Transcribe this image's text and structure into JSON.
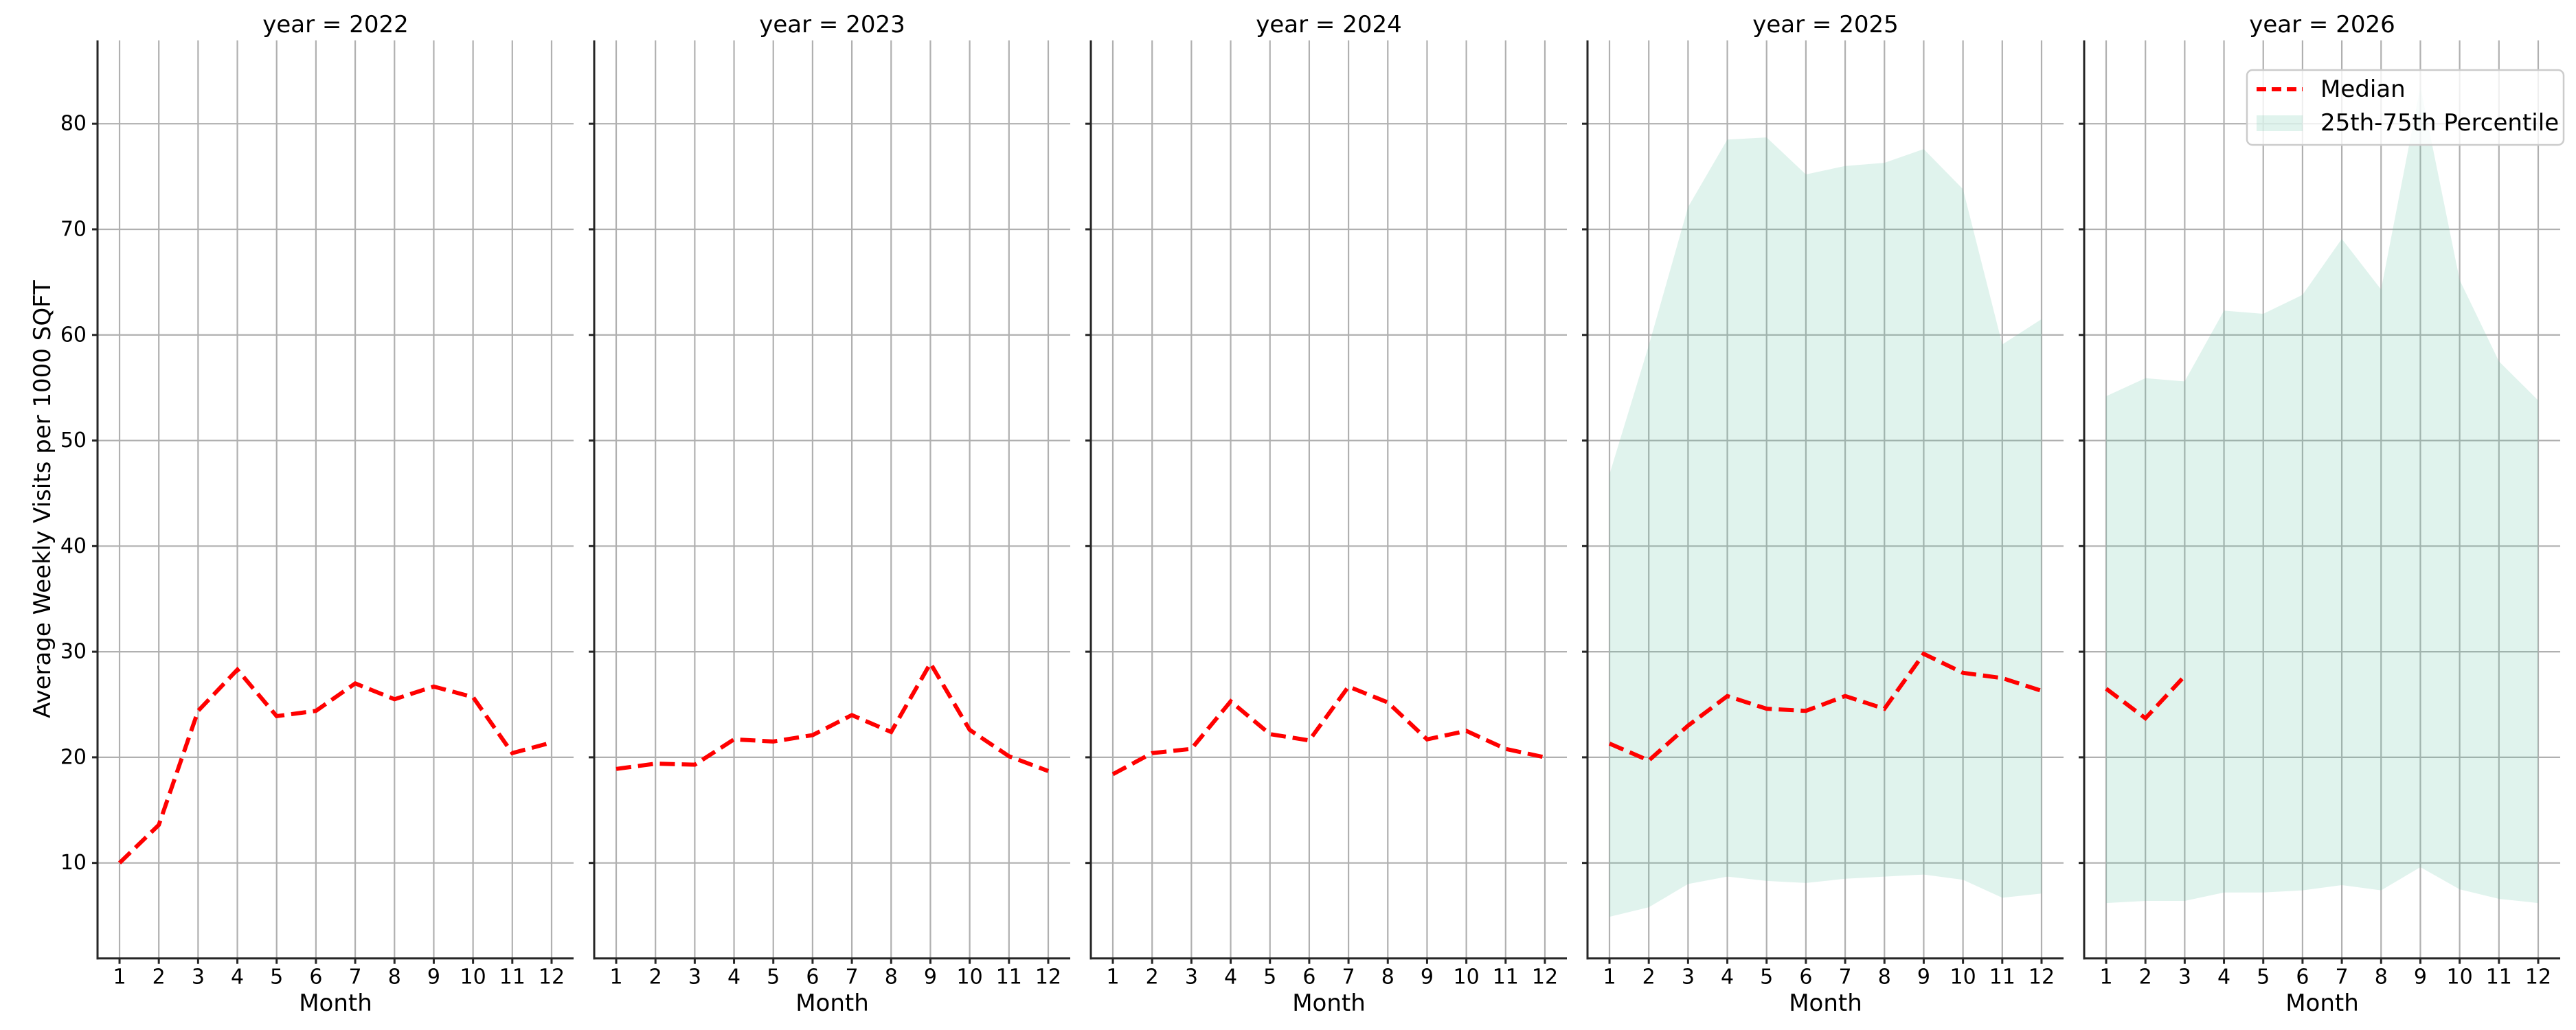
{
  "chart_data": {
    "type": "line",
    "layout": "faceted small multiples (1 row x 5 columns), shared y-axis",
    "facet_variable": "year",
    "xlabel": "Month",
    "ylabel": "Average Weekly Visits per 1000 SQFT",
    "x_ticks": [
      1,
      2,
      3,
      4,
      5,
      6,
      7,
      8,
      9,
      10,
      11,
      12
    ],
    "y_ticks": [
      10,
      20,
      30,
      40,
      50,
      60,
      70,
      80
    ],
    "xlim": [
      0.44,
      12.56
    ],
    "ylim": [
      0.96,
      87.9
    ],
    "grid": true,
    "legend": {
      "position": "upper right of last panel",
      "entries": [
        {
          "label": "Median",
          "style": "red dashed line",
          "color": "#ff0000"
        },
        {
          "label": "25th-75th Percentile",
          "style": "shaded band",
          "color": "#66c2a5",
          "alpha": 0.2
        }
      ]
    },
    "panels": [
      {
        "title": "year = 2022",
        "year": 2022,
        "months": [
          1,
          2,
          3,
          4,
          5,
          6,
          7,
          8,
          9,
          10,
          11,
          12
        ],
        "median": [
          10.0,
          13.6,
          24.4,
          28.3,
          23.9,
          24.4,
          27.0,
          25.5,
          26.7,
          25.7,
          20.4,
          21.4
        ],
        "p25": null,
        "p75": null
      },
      {
        "title": "year = 2023",
        "year": 2023,
        "months": [
          1,
          2,
          3,
          4,
          5,
          6,
          7,
          8,
          9,
          10,
          11,
          12
        ],
        "median": [
          18.9,
          19.4,
          19.3,
          21.7,
          21.5,
          22.1,
          24.0,
          22.4,
          28.9,
          22.6,
          20.1,
          18.7
        ],
        "p25": null,
        "p75": null
      },
      {
        "title": "year = 2024",
        "year": 2024,
        "months": [
          1,
          2,
          3,
          4,
          5,
          6,
          7,
          8,
          9,
          10,
          11,
          12
        ],
        "median": [
          18.4,
          20.4,
          20.8,
          25.3,
          22.2,
          21.6,
          26.7,
          25.2,
          21.7,
          22.5,
          20.8,
          20.0
        ],
        "p25": null,
        "p75": null
      },
      {
        "title": "year = 2025",
        "year": 2025,
        "months": [
          1,
          2,
          3,
          4,
          5,
          6,
          7,
          8,
          9,
          10,
          11,
          12
        ],
        "median": [
          21.3,
          19.7,
          23.0,
          25.8,
          24.6,
          24.4,
          25.8,
          24.6,
          29.8,
          28.0,
          27.5,
          26.3
        ],
        "p25": [
          4.9,
          5.8,
          8.0,
          8.7,
          8.3,
          8.1,
          8.5,
          8.7,
          8.9,
          8.4,
          6.7,
          7.1
        ],
        "p75": [
          46.8,
          59.0,
          72.1,
          78.5,
          78.7,
          75.2,
          76.0,
          76.3,
          77.6,
          73.8,
          59.1,
          61.5
        ]
      },
      {
        "title": "year = 2026",
        "year": 2026,
        "months": [
          1,
          2,
          3,
          4,
          5,
          6,
          7,
          8,
          9,
          10,
          11,
          12
        ],
        "median_months": [
          1,
          2,
          3
        ],
        "median": [
          26.5,
          23.7,
          27.7
        ],
        "p25": [
          6.2,
          6.4,
          6.4,
          7.2,
          7.2,
          7.4,
          7.9,
          7.4,
          9.6,
          7.5,
          6.6,
          6.2
        ],
        "p75": [
          54.2,
          55.9,
          55.6,
          62.3,
          62.0,
          63.8,
          69.1,
          64.3,
          83.5,
          65.2,
          57.5,
          53.8
        ]
      }
    ]
  },
  "labels": {
    "xlabel": "Month",
    "ylabel": "Average Weekly Visits per 1000 SQFT",
    "legend_median": "Median",
    "legend_band": "25th-75th Percentile"
  },
  "colors": {
    "median": "#ff0000",
    "band": "#66c2a5",
    "grid": "#b0b0b0",
    "spine": "#262626"
  }
}
